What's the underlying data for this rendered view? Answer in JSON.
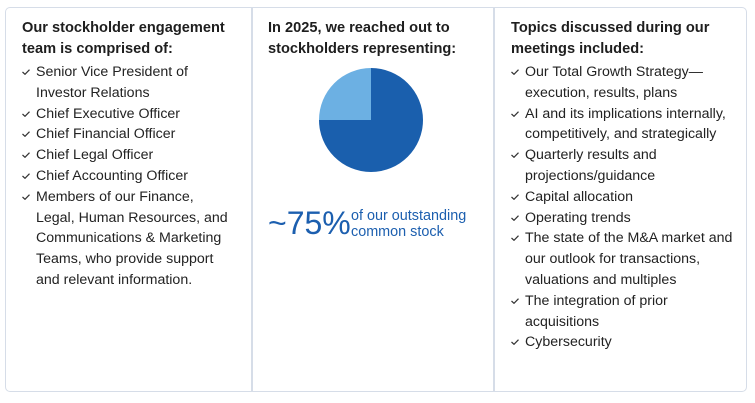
{
  "left": {
    "heading": "Our stockholder engagement team is comprised of:",
    "items": [
      "Senior Vice President of Investor Relations",
      "Chief Executive Officer",
      "Chief Financial Officer",
      "Chief Legal Officer",
      "Chief Accounting Officer",
      "Members of our Finance, Legal, Human Resources, and Communications & Marketing Teams, who provide support and relevant information."
    ]
  },
  "middle": {
    "heading": "In 2025, we reached out to stockholders representing:",
    "stat": "~75%",
    "stat_caption_line1": "of our outstanding",
    "stat_caption_line2": "common stock",
    "chart_data": {
      "type": "pie",
      "values": [
        75,
        25
      ],
      "colors": [
        "#1a5fad",
        "#6cb0e3"
      ]
    }
  },
  "right": {
    "heading": "Topics discussed during our meetings included:",
    "items": [
      "Our Total Growth Strategy—execution, results, plans",
      "AI and its implications internally, competitively, and strategically",
      "Quarterly results and projections/guidance",
      "Capital allocation",
      "Operating trends",
      "The state of the M&A market and our outlook for transactions, valuations and multiples",
      "The integration of prior acquisitions",
      "Cybersecurity"
    ]
  }
}
